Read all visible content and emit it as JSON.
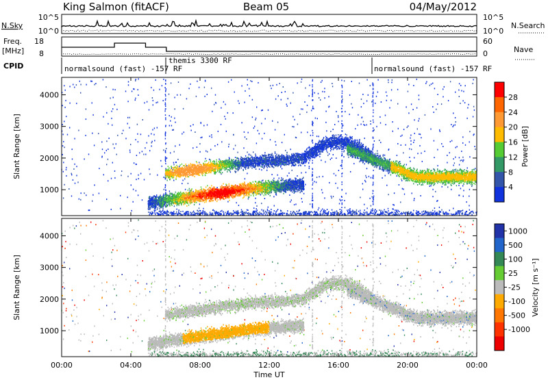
{
  "header": {
    "station": "King Salmon (fitACF)",
    "beam": "Beam 05",
    "date": "04/May/2012"
  },
  "nsky_panel": {
    "left_label": "N.Sky",
    "left_ticks": [
      "10^5",
      "10^0"
    ],
    "right_label": "N.Search",
    "right_ticks": [
      "10^5",
      "10^0"
    ]
  },
  "freq_panel": {
    "left_label_line1": "Freq.",
    "left_label_line2": "[MHz]",
    "left_ticks": [
      "18",
      "8"
    ],
    "right_label": "Nave",
    "right_ticks": [
      "60",
      "0"
    ]
  },
  "cpid_panel": {
    "label": "CPID",
    "modes": [
      {
        "name": "normalsound (fast) -157 RF",
        "start_hour": 0,
        "end_hour": 6
      },
      {
        "name": "themis 3300 RF",
        "start_hour": 6,
        "end_hour": 18
      },
      {
        "name": "normalsound (fast) -157 RF",
        "start_hour": 18,
        "end_hour": 24
      }
    ]
  },
  "x_axis": {
    "label": "Time UT",
    "ticks": [
      "00:00",
      "04:00",
      "08:00",
      "12:00",
      "16:00",
      "20:00",
      "00:00"
    ]
  },
  "chart_data": [
    {
      "type": "heatmap",
      "name": "power",
      "ylabel": "Slant Range [km]",
      "yticks": [
        1000,
        2000,
        3000,
        4000
      ],
      "ylim": [
        180,
        4550
      ],
      "xlim_hours": [
        0,
        24
      ],
      "colorbar": {
        "label": "Power [dB]",
        "ticks": [
          "28",
          "24",
          "20",
          "16",
          "12",
          "8",
          "4"
        ],
        "colors": [
          "#ff0000",
          "#ff6600",
          "#ff9933",
          "#ffbb00",
          "#55cc33",
          "#339966",
          "#3355aa",
          "#1133dd"
        ]
      }
    },
    {
      "type": "heatmap",
      "name": "velocity",
      "ylabel": "Slant Range [km]",
      "yticks": [
        1000,
        2000,
        3000,
        4000
      ],
      "ylim": [
        180,
        4550
      ],
      "xlim_hours": [
        0,
        24
      ],
      "colorbar": {
        "label": "Velocity [m s⁻¹]",
        "ticks": [
          "1000",
          "500",
          "100",
          "25",
          "-25",
          "-100",
          "-500",
          "-1000"
        ],
        "colors": [
          "#2233aa",
          "#2266cc",
          "#338855",
          "#66cc33",
          "#bbbbbb",
          "#ffaa00",
          "#ff7700",
          "#ff3300",
          "#ee0000"
        ]
      }
    }
  ]
}
